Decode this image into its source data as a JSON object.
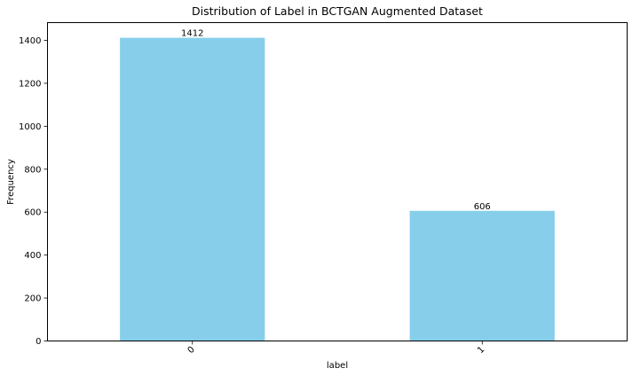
{
  "chart_data": {
    "type": "bar",
    "title": "Distribution of Label in BCTGAN Augmented Dataset",
    "xlabel": "label",
    "ylabel": "Frequency",
    "categories": [
      "0",
      "1"
    ],
    "values": [
      1412,
      606
    ],
    "data_labels": [
      "1412",
      "606"
    ],
    "ylim": [
      0,
      1482.6
    ],
    "yticks": [
      0,
      200,
      400,
      600,
      800,
      1000,
      1200,
      1400
    ],
    "ytick_labels": [
      "0",
      "200",
      "400",
      "600",
      "800",
      "1000",
      "1200",
      "1400"
    ],
    "bar_color": "#87CEEB",
    "grid": false,
    "xtick_rotation": 45
  }
}
